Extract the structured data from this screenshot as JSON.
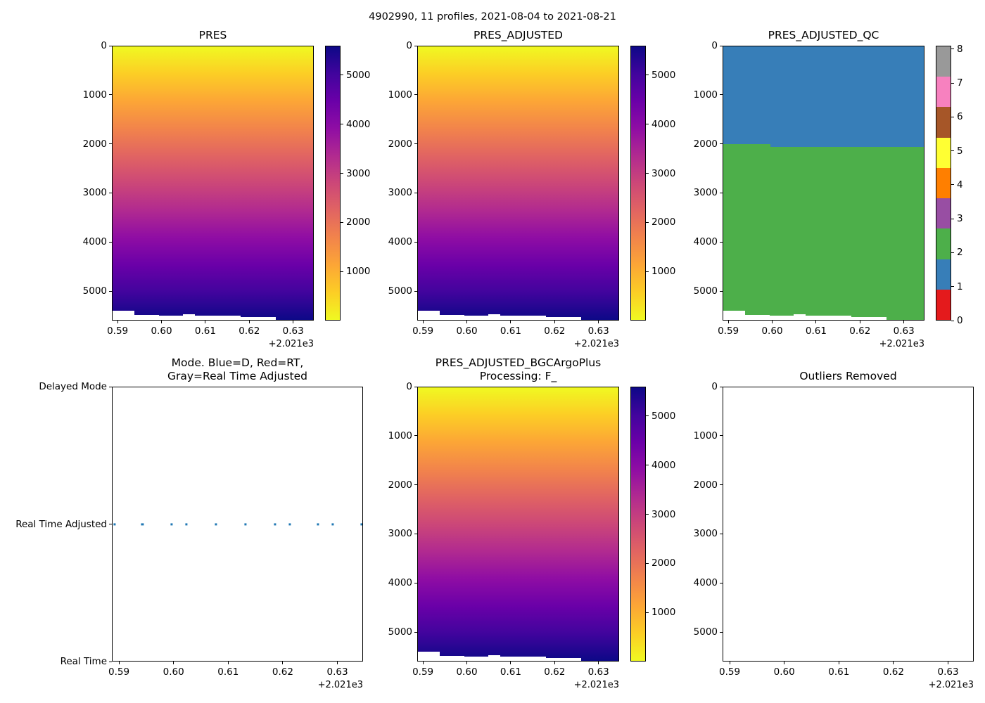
{
  "figure": {
    "suptitle": "4902990, 11 profiles, 2021-08-04 to 2021-08-21",
    "background_color": "#ffffff",
    "text_color": "#000000"
  },
  "x_axis": {
    "range": [
      2021.5887,
      2021.6347
    ],
    "tick_values": [
      2021.59,
      2021.6,
      2021.61,
      2021.62,
      2021.63
    ],
    "tick_labels": [
      "0.59",
      "0.60",
      "0.61",
      "0.62",
      "0.63"
    ],
    "offset_text": "+2.021e3"
  },
  "depth_axis": {
    "range": [
      0,
      5600
    ],
    "tick_values": [
      0,
      1000,
      2000,
      3000,
      4000,
      5000
    ],
    "tick_labels": [
      "0",
      "1000",
      "2000",
      "3000",
      "4000",
      "5000"
    ]
  },
  "palettes": {
    "plasma_top_to_bottom": [
      "#f0f921",
      "#fcce25",
      "#fca636",
      "#f2844b",
      "#e16462",
      "#cc4778",
      "#b12a90",
      "#8f0da4",
      "#6a00a8",
      "#41049d",
      "#0d0887"
    ],
    "qc_set1_bottom_to_top": [
      "#e41a1c",
      "#377eb8",
      "#4daf4a",
      "#984ea3",
      "#ff7f00",
      "#ffff33",
      "#a65628",
      "#f781bf",
      "#999999"
    ]
  },
  "chart_data": [
    {
      "id": "pres",
      "type": "heatmap",
      "title": "PRES",
      "colormap": "plasma reversed (yellow = 0 dbar at surface, dark navy = ~5600 dbar at depth)",
      "value_range": [
        0,
        5600
      ],
      "colorbar": {
        "style": "continuous",
        "tick_values": [
          1000,
          2000,
          3000,
          4000,
          5000
        ],
        "tick_labels": [
          "1000",
          "2000",
          "3000",
          "4000",
          "5000"
        ]
      },
      "max_depth_segments": [
        {
          "x0": 2021.5887,
          "x1": 2021.5937,
          "max_depth": 5415
        },
        {
          "x0": 2021.5937,
          "x1": 2021.5993,
          "max_depth": 5500
        },
        {
          "x0": 2021.5993,
          "x1": 2021.6049,
          "max_depth": 5515
        },
        {
          "x0": 2021.6049,
          "x1": 2021.6076,
          "max_depth": 5490
        },
        {
          "x0": 2021.6076,
          "x1": 2021.6121,
          "max_depth": 5515
        },
        {
          "x0": 2021.6121,
          "x1": 2021.618,
          "max_depth": 5520
        },
        {
          "x0": 2021.618,
          "x1": 2021.6262,
          "max_depth": 5540
        },
        {
          "x0": 2021.6262,
          "x1": 2021.6347,
          "max_depth": 5600
        }
      ]
    },
    {
      "id": "pres_adjusted",
      "type": "heatmap",
      "title": "PRES_ADJUSTED",
      "colormap": "plasma reversed (yellow = 0 dbar at surface, dark navy = ~5600 dbar at depth)",
      "value_range": [
        0,
        5600
      ],
      "colorbar": {
        "style": "continuous",
        "tick_values": [
          1000,
          2000,
          3000,
          4000,
          5000
        ],
        "tick_labels": [
          "1000",
          "2000",
          "3000",
          "4000",
          "5000"
        ]
      },
      "max_depth_segments": [
        {
          "x0": 2021.5887,
          "x1": 2021.5937,
          "max_depth": 5415
        },
        {
          "x0": 2021.5937,
          "x1": 2021.5993,
          "max_depth": 5500
        },
        {
          "x0": 2021.5993,
          "x1": 2021.6049,
          "max_depth": 5515
        },
        {
          "x0": 2021.6049,
          "x1": 2021.6076,
          "max_depth": 5490
        },
        {
          "x0": 2021.6076,
          "x1": 2021.6121,
          "max_depth": 5515
        },
        {
          "x0": 2021.6121,
          "x1": 2021.618,
          "max_depth": 5520
        },
        {
          "x0": 2021.618,
          "x1": 2021.6262,
          "max_depth": 5540
        },
        {
          "x0": 2021.6262,
          "x1": 2021.6347,
          "max_depth": 5600
        }
      ]
    },
    {
      "id": "pres_adjusted_qc",
      "type": "categorical_heatmap",
      "title": "PRES_ADJUSTED_QC",
      "value_range": [
        0,
        5600
      ],
      "qc_blue_segments": [
        {
          "qc": 1,
          "x0": 2021.5887,
          "x1": 2021.5995,
          "depth_top": 0,
          "depth_bottom": 2000
        },
        {
          "qc": 1,
          "x0": 2021.5995,
          "x1": 2021.6347,
          "depth_top": 0,
          "depth_bottom": 2055
        }
      ],
      "qc_background": {
        "qc": 2,
        "note": "QC=2 green from below QC=1 region down to profile max depth"
      },
      "colorbar": {
        "style": "discrete",
        "tick_values": [
          0,
          1,
          2,
          3,
          4,
          5,
          6,
          7,
          8
        ],
        "tick_labels": [
          "0",
          "1",
          "2",
          "3",
          "4",
          "5",
          "6",
          "7",
          "8"
        ],
        "range_max": 8.1
      },
      "max_depth_segments": [
        {
          "x0": 2021.5887,
          "x1": 2021.5937,
          "max_depth": 5415
        },
        {
          "x0": 2021.5937,
          "x1": 2021.5993,
          "max_depth": 5500
        },
        {
          "x0": 2021.5993,
          "x1": 2021.6049,
          "max_depth": 5515
        },
        {
          "x0": 2021.6049,
          "x1": 2021.6076,
          "max_depth": 5490
        },
        {
          "x0": 2021.6076,
          "x1": 2021.6121,
          "max_depth": 5515
        },
        {
          "x0": 2021.6121,
          "x1": 2021.618,
          "max_depth": 5520
        },
        {
          "x0": 2021.618,
          "x1": 2021.6262,
          "max_depth": 5540
        },
        {
          "x0": 2021.6262,
          "x1": 2021.6347,
          "max_depth": 5600
        }
      ]
    },
    {
      "id": "mode",
      "type": "scatter",
      "title": "Mode. Blue=D, Red=RT,\nGray=Real Time Adjusted",
      "y_categories": [
        "Delayed Mode",
        "Real Time Adjusted",
        "Real Time"
      ],
      "points_y": "Real Time Adjusted",
      "marker_color": "#1f77b4",
      "points_x": [
        2021.5891,
        2021.5942,
        2021.5996,
        2021.6023,
        2021.6077,
        2021.6132,
        2021.6186,
        2021.6213,
        2021.6265,
        2021.6292,
        2021.6346
      ]
    },
    {
      "id": "pres_adjusted_bgc",
      "type": "heatmap",
      "title": "PRES_ADJUSTED_BGCArgoPlus\nProcessing: F_",
      "colormap": "plasma reversed (yellow = 0 dbar at surface, dark navy = ~5600 dbar at depth)",
      "value_range": [
        0,
        5600
      ],
      "colorbar": {
        "style": "continuous",
        "tick_values": [
          1000,
          2000,
          3000,
          4000,
          5000
        ],
        "tick_labels": [
          "1000",
          "2000",
          "3000",
          "4000",
          "5000"
        ]
      },
      "max_depth_segments": [
        {
          "x0": 2021.5887,
          "x1": 2021.5937,
          "max_depth": 5415
        },
        {
          "x0": 2021.5937,
          "x1": 2021.5993,
          "max_depth": 5500
        },
        {
          "x0": 2021.5993,
          "x1": 2021.6049,
          "max_depth": 5515
        },
        {
          "x0": 2021.6049,
          "x1": 2021.6076,
          "max_depth": 5490
        },
        {
          "x0": 2021.6076,
          "x1": 2021.6121,
          "max_depth": 5515
        },
        {
          "x0": 2021.6121,
          "x1": 2021.618,
          "max_depth": 5520
        },
        {
          "x0": 2021.618,
          "x1": 2021.6262,
          "max_depth": 5540
        },
        {
          "x0": 2021.6262,
          "x1": 2021.6347,
          "max_depth": 5600
        }
      ]
    },
    {
      "id": "outliers_removed",
      "type": "empty",
      "title": "Outliers Removed",
      "value_range": [
        0,
        5600
      ]
    }
  ]
}
